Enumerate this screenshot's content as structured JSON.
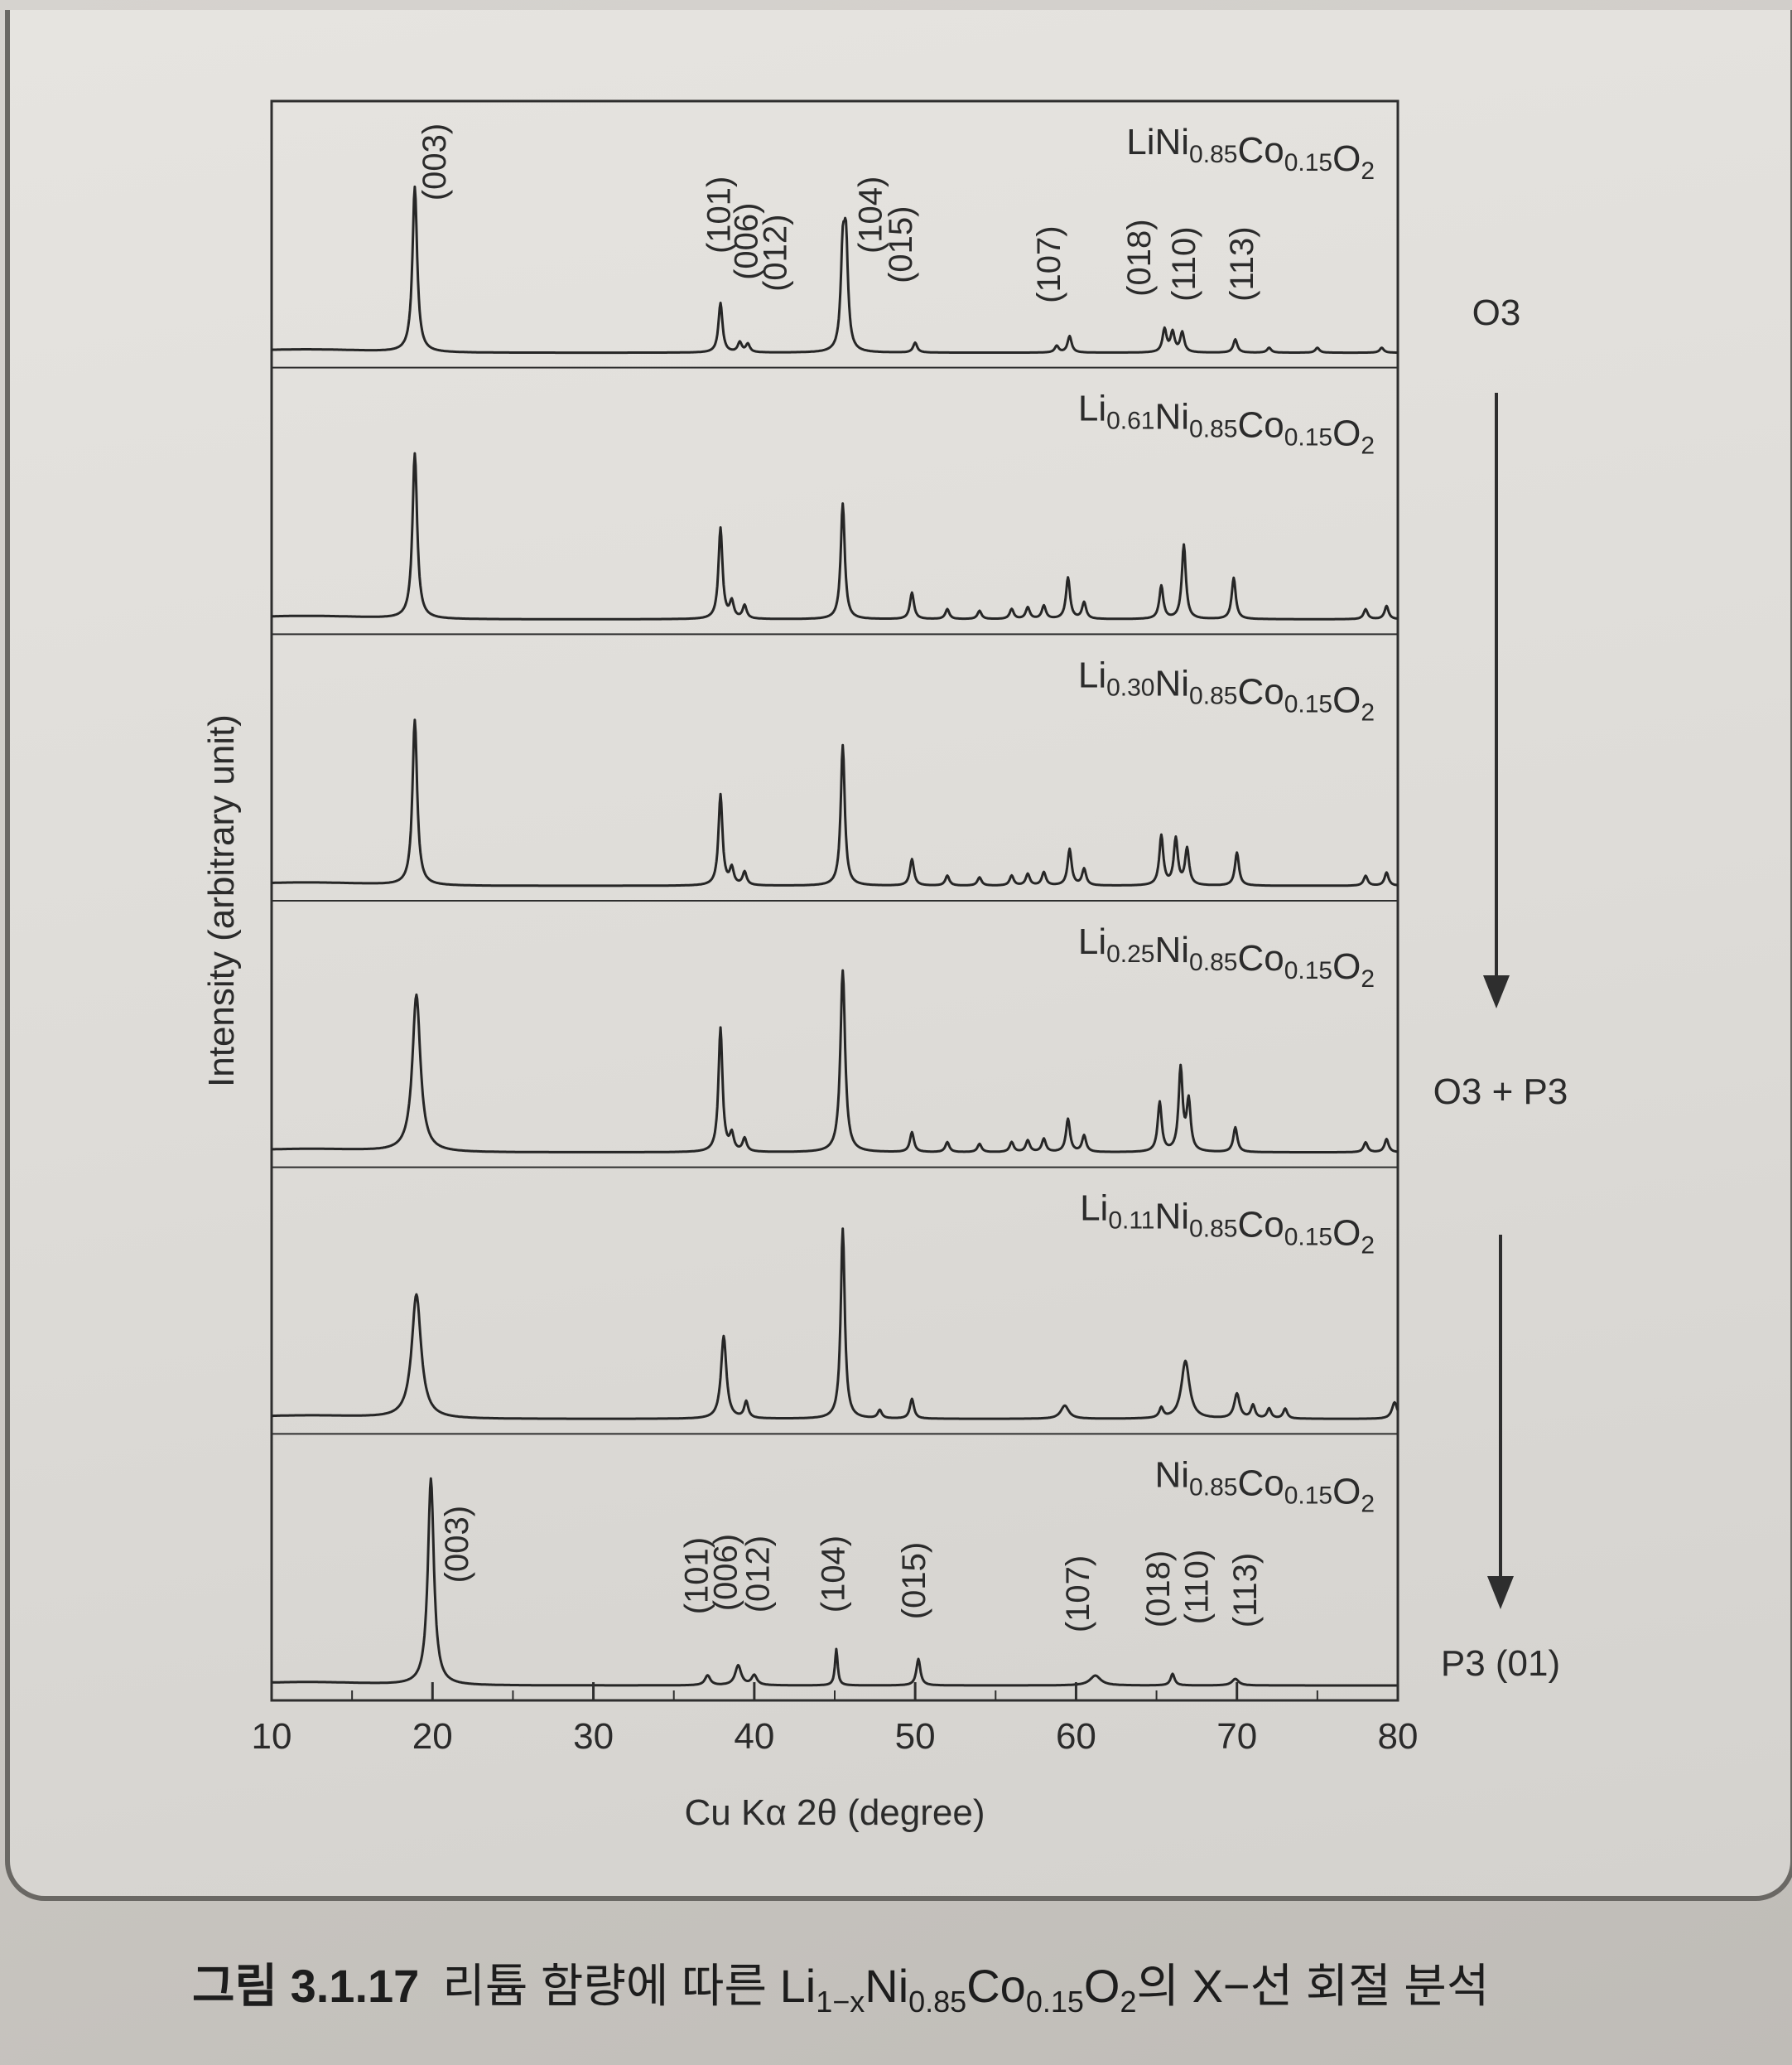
{
  "caption": {
    "number": "그림 3.1.17",
    "text": "리튬 함량에 따른 Li1−xNi0.85Co0.15O2의 X−선 회절 분석"
  },
  "chart_data": {
    "type": "line",
    "xlabel": "Cu Kα 2θ (degree)",
    "ylabel": "Intensity (arbitrary unit)",
    "xlim": [
      10,
      80
    ],
    "x_ticks": [
      10,
      20,
      30,
      40,
      50,
      60,
      70,
      80
    ],
    "phase_labels": [
      "O3",
      "O3 + P3",
      "P3 (01)"
    ],
    "panels": [
      {
        "composition": [
          "Li",
          "Ni",
          "0.85",
          "Co",
          "0.15",
          "O",
          "2"
        ],
        "peaks": [
          [
            18.9,
            1.0,
            0.35
          ],
          [
            37.9,
            0.3,
            0.3
          ],
          [
            39.1,
            0.06,
            0.3
          ],
          [
            39.6,
            0.05,
            0.3
          ],
          [
            45.5,
            0.55,
            0.3
          ],
          [
            45.7,
            0.6,
            0.3
          ],
          [
            50.0,
            0.06,
            0.3
          ],
          [
            58.8,
            0.04,
            0.3
          ],
          [
            59.6,
            0.1,
            0.3
          ],
          [
            65.5,
            0.14,
            0.3
          ],
          [
            66.0,
            0.12,
            0.3
          ],
          [
            66.6,
            0.12,
            0.3
          ],
          [
            69.9,
            0.08,
            0.3
          ],
          [
            72,
            0.03,
            0.3
          ],
          [
            75,
            0.03,
            0.3
          ],
          [
            79,
            0.03,
            0.3
          ]
        ],
        "hkl_labels": [
          {
            "label": "(003)",
            "x": 20.8,
            "y": 0.92
          },
          {
            "label": "(101)",
            "x": 38.5,
            "y": 0.6
          },
          {
            "label": "(006)",
            "x": 40.2,
            "y": 0.44
          },
          {
            "label": "(012)",
            "x": 42.0,
            "y": 0.37
          },
          {
            "label": "(104)",
            "x": 47.9,
            "y": 0.6
          },
          {
            "label": "(015)",
            "x": 49.8,
            "y": 0.42
          },
          {
            "label": "(107)",
            "x": 59.0,
            "y": 0.3
          },
          {
            "label": "(018)",
            "x": 64.6,
            "y": 0.34
          },
          {
            "label": "(110)",
            "x": 67.4,
            "y": 0.31
          },
          {
            "label": "(113)",
            "x": 71.0,
            "y": 0.31
          }
        ]
      },
      {
        "composition": [
          "Li",
          "0.61",
          "Ni",
          "0.85",
          "Co",
          "0.15",
          "O",
          "2"
        ],
        "peaks": [
          [
            18.9,
            1.0,
            0.35
          ],
          [
            37.9,
            0.55,
            0.3
          ],
          [
            38.6,
            0.1,
            0.3
          ],
          [
            39.4,
            0.08,
            0.3
          ],
          [
            45.5,
            0.7,
            0.3
          ],
          [
            49.8,
            0.16,
            0.3
          ],
          [
            52,
            0.06,
            0.3
          ],
          [
            54,
            0.05,
            0.3
          ],
          [
            56,
            0.06,
            0.3
          ],
          [
            57,
            0.07,
            0.3
          ],
          [
            58,
            0.08,
            0.3
          ],
          [
            59.5,
            0.25,
            0.3
          ],
          [
            60.5,
            0.1,
            0.3
          ],
          [
            65.3,
            0.2,
            0.3
          ],
          [
            66.7,
            0.45,
            0.3
          ],
          [
            69.8,
            0.25,
            0.3
          ],
          [
            78,
            0.06,
            0.3
          ],
          [
            79.3,
            0.08,
            0.3
          ]
        ],
        "hkl_labels": []
      },
      {
        "composition": [
          "Li",
          "0.30",
          "Ni",
          "0.85",
          "Co",
          "0.15",
          "O",
          "2"
        ],
        "peaks": [
          [
            18.9,
            1.0,
            0.35
          ],
          [
            37.9,
            0.55,
            0.3
          ],
          [
            38.6,
            0.1,
            0.3
          ],
          [
            39.4,
            0.08,
            0.3
          ],
          [
            45.5,
            0.85,
            0.3
          ],
          [
            49.8,
            0.16,
            0.3
          ],
          [
            52,
            0.06,
            0.3
          ],
          [
            54,
            0.05,
            0.3
          ],
          [
            56,
            0.06,
            0.3
          ],
          [
            57,
            0.07,
            0.3
          ],
          [
            58,
            0.08,
            0.3
          ],
          [
            59.6,
            0.22,
            0.3
          ],
          [
            60.5,
            0.1,
            0.3
          ],
          [
            65.3,
            0.3,
            0.3
          ],
          [
            66.2,
            0.28,
            0.3
          ],
          [
            66.9,
            0.22,
            0.3
          ],
          [
            70.0,
            0.2,
            0.3
          ],
          [
            78,
            0.06,
            0.3
          ],
          [
            79.3,
            0.08,
            0.3
          ]
        ],
        "hkl_labels": []
      },
      {
        "composition": [
          "Li",
          "0.25",
          "Ni",
          "0.85",
          "Co",
          "0.15",
          "O",
          "2"
        ],
        "peaks": [
          [
            19.0,
            0.95,
            0.6
          ],
          [
            37.9,
            0.75,
            0.3
          ],
          [
            38.6,
            0.1,
            0.3
          ],
          [
            39.4,
            0.08,
            0.3
          ],
          [
            45.5,
            1.1,
            0.35
          ],
          [
            49.8,
            0.12,
            0.3
          ],
          [
            52,
            0.06,
            0.3
          ],
          [
            54,
            0.05,
            0.3
          ],
          [
            56,
            0.06,
            0.3
          ],
          [
            57,
            0.07,
            0.3
          ],
          [
            58,
            0.08,
            0.3
          ],
          [
            59.5,
            0.2,
            0.3
          ],
          [
            60.5,
            0.1,
            0.3
          ],
          [
            65.2,
            0.3,
            0.3
          ],
          [
            66.5,
            0.5,
            0.3
          ],
          [
            67.0,
            0.3,
            0.3
          ],
          [
            69.9,
            0.15,
            0.3
          ],
          [
            78,
            0.06,
            0.3
          ],
          [
            79.3,
            0.08,
            0.3
          ]
        ],
        "hkl_labels": []
      },
      {
        "composition": [
          "Li",
          "0.11",
          "Ni",
          "0.85",
          "Co",
          "0.15",
          "O",
          "2"
        ],
        "peaks": [
          [
            19.0,
            0.75,
            0.7
          ],
          [
            38.1,
            0.5,
            0.4
          ],
          [
            39.5,
            0.1,
            0.3
          ],
          [
            45.5,
            1.15,
            0.3
          ],
          [
            47.8,
            0.05,
            0.3
          ],
          [
            49.8,
            0.12,
            0.3
          ],
          [
            59.3,
            0.08,
            0.6
          ],
          [
            65.3,
            0.06,
            0.3
          ],
          [
            66.8,
            0.35,
            0.6
          ],
          [
            70.0,
            0.15,
            0.4
          ],
          [
            71.0,
            0.08,
            0.3
          ],
          [
            72.0,
            0.06,
            0.3
          ],
          [
            73.0,
            0.06,
            0.3
          ],
          [
            79.8,
            0.1,
            0.4
          ]
        ],
        "hkl_labels": []
      },
      {
        "composition": [
          "Ni",
          "0.85",
          "Co",
          "0.15",
          "O",
          "2"
        ],
        "peaks": [
          [
            19.9,
            1.25,
            0.45
          ],
          [
            37.1,
            0.06,
            0.4
          ],
          [
            39.0,
            0.12,
            0.45
          ],
          [
            40.0,
            0.06,
            0.4
          ],
          [
            45.1,
            0.22,
            0.2
          ],
          [
            50.2,
            0.16,
            0.3
          ],
          [
            61.2,
            0.06,
            0.8
          ],
          [
            66.0,
            0.07,
            0.3
          ],
          [
            69.9,
            0.04,
            0.5
          ]
        ],
        "hkl_labels": [
          {
            "label": "(003)",
            "x": 22.2,
            "y": 0.62
          },
          {
            "label": "(101)",
            "x": 37.1,
            "y": 0.43
          },
          {
            "label": "(006)",
            "x": 38.9,
            "y": 0.45
          },
          {
            "label": "(012)",
            "x": 40.9,
            "y": 0.44
          },
          {
            "label": "(104)",
            "x": 45.6,
            "y": 0.44
          },
          {
            "label": "(015)",
            "x": 50.6,
            "y": 0.4
          },
          {
            "label": "(107)",
            "x": 60.8,
            "y": 0.32
          },
          {
            "label": "(018)",
            "x": 65.8,
            "y": 0.35
          },
          {
            "label": "(110)",
            "x": 68.2,
            "y": 0.37
          },
          {
            "label": "(113)",
            "x": 71.2,
            "y": 0.35
          }
        ]
      }
    ]
  }
}
